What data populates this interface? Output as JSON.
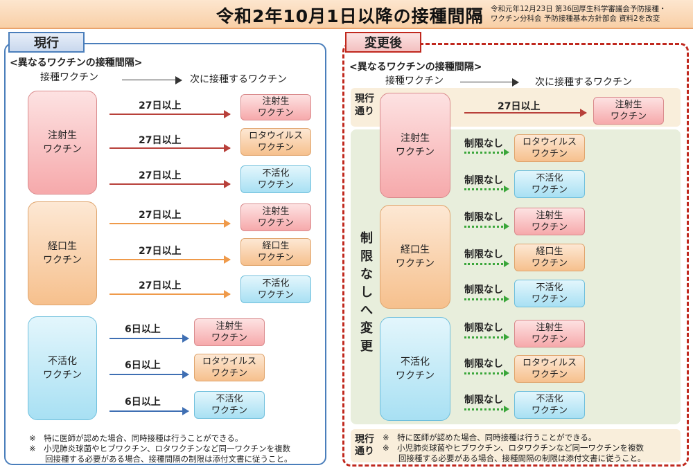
{
  "title": "令和2年10月1日以降の接種間隔",
  "source": [
    "令和元年12月23日 第36回厚生科学審議会予防接種・",
    "ワクチン分科会 予防接種基本方針部会 資料2を改変"
  ],
  "left": {
    "tab": "現行",
    "heading": "<異なるワクチンの接種間隔>",
    "col1": "接種ワクチン",
    "col2": "次に接種するワクチン",
    "groups": [
      {
        "name": "注射生\nワクチン",
        "rows": [
          {
            "interval": "27日以上",
            "next": "注射生\nワクチン"
          },
          {
            "interval": "27日以上",
            "next": "ロタウイルス\nワクチン"
          },
          {
            "interval": "27日以上",
            "next": "不活化\nワクチン"
          }
        ]
      },
      {
        "name": "経口生\nワクチン",
        "rows": [
          {
            "interval": "27日以上",
            "next": "注射生\nワクチン"
          },
          {
            "interval": "27日以上",
            "next": "経口生\nワクチン"
          },
          {
            "interval": "27日以上",
            "next": "不活化\nワクチン"
          }
        ]
      },
      {
        "name": "不活化\nワクチン",
        "rows": [
          {
            "interval": "6日以上",
            "next": "注射生\nワクチン"
          },
          {
            "interval": "6日以上",
            "next": "ロタウイルス\nワクチン"
          },
          {
            "interval": "6日以上",
            "next": "不活化\nワクチン"
          }
        ]
      }
    ],
    "notes": [
      "※　特に医師が認めた場合、同時接種は行うことができる。",
      "※　小児肺炎球菌やヒブワクチン、ロタワクチンなど同一ワクチンを複数",
      "　　回接種する必要がある場合、接種間隔の制限は添付文書に従うこと。"
    ]
  },
  "right": {
    "tab": "変更後",
    "heading": "<異なるワクチンの接種間隔>",
    "col1": "接種ワクチン",
    "col2": "次に接種するワクチン",
    "current_label": "現行\n通り",
    "change_label": "制限なしへ変更",
    "top_row": {
      "interval": "27日以上",
      "next": "注射生\nワクチン"
    },
    "no_limit": "制限なし",
    "groups": [
      {
        "name": "注射生\nワクチン",
        "rows": [
          "ロタウイルス\nワクチン",
          "不活化\nワクチン"
        ]
      },
      {
        "name": "経口生\nワクチン",
        "rows": [
          "注射生\nワクチン",
          "経口生\nワクチン",
          "不活化\nワクチン"
        ]
      },
      {
        "name": "不活化\nワクチン",
        "rows": [
          "注射生\nワクチン",
          "ロタウイルス\nワクチン",
          "不活化\nワクチン"
        ]
      }
    ],
    "notes_label": "現行\n通り",
    "notes": [
      "※　特に医師が認めた場合、同時接種は行うことができる。",
      "※　小児肺炎球菌やヒブワクチン、ロタワクチンなど同一ワクチンを複数",
      "　　回接種する必要がある場合、接種間隔の制限は添付文書に従うこと。"
    ]
  }
}
